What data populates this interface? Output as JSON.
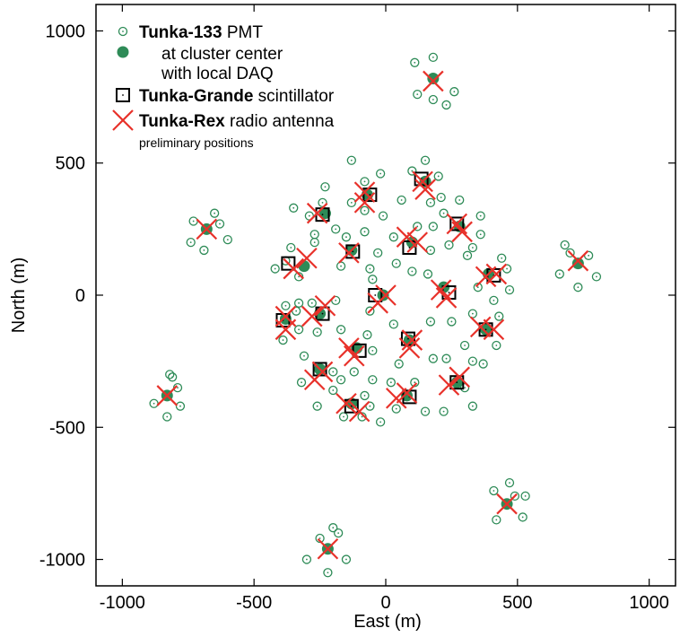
{
  "chart_data": {
    "type": "scatter",
    "xlabel": "East (m)",
    "ylabel": "North (m)",
    "xlim": [
      -1100,
      1100
    ],
    "ylim": [
      -1100,
      1100
    ],
    "xticks": [
      -1000,
      -500,
      0,
      500,
      1000
    ],
    "yticks": [
      -1000,
      -500,
      0,
      500,
      1000
    ],
    "xtick_labels": [
      "-1000",
      "-500",
      "0",
      "500",
      "1000"
    ],
    "ytick_labels": [
      "-1000",
      "-500",
      "0",
      "500",
      "1000"
    ],
    "grid": false,
    "legend": {
      "position": "top-left",
      "entries": [
        {
          "bold": "Tunka-133",
          "rest": " PMT",
          "marker": "pmt"
        },
        {
          "line1": "at cluster center",
          "line2": "with local DAQ",
          "marker": "center"
        },
        {
          "bold": "Tunka-Grande",
          "rest": " scintillator",
          "marker": "scint"
        },
        {
          "bold": "Tunka-Rex",
          "rest": " radio antenna",
          "marker": "antenna"
        }
      ],
      "note": "preliminary positions"
    },
    "colors": {
      "pmt": "#2e8b57",
      "antenna": "#e8312a",
      "scint": "#000000"
    },
    "series": [
      {
        "name": "cluster center",
        "points": [
          [
            -230,
            310
          ],
          [
            -310,
            110
          ],
          [
            -380,
            -90
          ],
          [
            -250,
            -70
          ],
          [
            -130,
            170
          ],
          [
            -70,
            380
          ],
          [
            -10,
            0
          ],
          [
            -110,
            -200
          ],
          [
            -250,
            -280
          ],
          [
            -130,
            -410
          ],
          [
            80,
            -380
          ],
          [
            90,
            -170
          ],
          [
            270,
            -330
          ],
          [
            380,
            -130
          ],
          [
            390,
            80
          ],
          [
            220,
            30
          ],
          [
            150,
            430
          ],
          [
            280,
            260
          ],
          [
            100,
            200
          ],
          [
            180,
            820
          ],
          [
            -680,
            250
          ],
          [
            730,
            120
          ],
          [
            -830,
            -380
          ],
          [
            -220,
            -960
          ],
          [
            460,
            -790
          ]
        ]
      },
      {
        "name": "outer PMT",
        "points": [
          [
            -240,
            350
          ],
          [
            -290,
            300
          ],
          [
            -190,
            250
          ],
          [
            -230,
            410
          ],
          [
            -270,
            200
          ],
          [
            -360,
            180
          ],
          [
            -380,
            130
          ],
          [
            -330,
            70
          ],
          [
            -330,
            -30
          ],
          [
            -380,
            -40
          ],
          [
            -390,
            -170
          ],
          [
            -330,
            -130
          ],
          [
            -280,
            -30
          ],
          [
            -190,
            -20
          ],
          [
            -260,
            -140
          ],
          [
            -150,
            220
          ],
          [
            -80,
            240
          ],
          [
            -170,
            110
          ],
          [
            -60,
            100
          ],
          [
            -10,
            300
          ],
          [
            -80,
            320
          ],
          [
            -80,
            430
          ],
          [
            -20,
            460
          ],
          [
            -130,
            350
          ],
          [
            40,
            120
          ],
          [
            -30,
            160
          ],
          [
            -50,
            60
          ],
          [
            -60,
            -60
          ],
          [
            -70,
            -150
          ],
          [
            -170,
            -130
          ],
          [
            -120,
            -290
          ],
          [
            -50,
            -210
          ],
          [
            -170,
            -320
          ],
          [
            -200,
            -360
          ],
          [
            -160,
            -460
          ],
          [
            -90,
            -460
          ],
          [
            -60,
            -420
          ],
          [
            -50,
            -320
          ],
          [
            50,
            -260
          ],
          [
            20,
            -330
          ],
          [
            150,
            -440
          ],
          [
            40,
            -430
          ],
          [
            180,
            -240
          ],
          [
            230,
            -240
          ],
          [
            300,
            -350
          ],
          [
            330,
            -420
          ],
          [
            220,
            -440
          ],
          [
            330,
            -250
          ],
          [
            420,
            -190
          ],
          [
            430,
            -80
          ],
          [
            330,
            -70
          ],
          [
            300,
            -190
          ],
          [
            170,
            -100
          ],
          [
            250,
            -100
          ],
          [
            30,
            -110
          ],
          [
            460,
            100
          ],
          [
            470,
            20
          ],
          [
            350,
            30
          ],
          [
            310,
            150
          ],
          [
            170,
            170
          ],
          [
            160,
            80
          ],
          [
            100,
            90
          ],
          [
            120,
            260
          ],
          [
            180,
            260
          ],
          [
            220,
            310
          ],
          [
            240,
            190
          ],
          [
            330,
            180
          ],
          [
            360,
            300
          ],
          [
            280,
            360
          ],
          [
            170,
            350
          ],
          [
            100,
            470
          ],
          [
            200,
            450
          ],
          [
            150,
            510
          ],
          [
            60,
            360
          ],
          [
            30,
            220
          ],
          [
            -350,
            330
          ],
          [
            -270,
            230
          ],
          [
            -420,
            100
          ],
          [
            -340,
            -60
          ],
          [
            -310,
            -230
          ],
          [
            -200,
            -290
          ],
          [
            -320,
            -330
          ],
          [
            -80,
            -380
          ],
          [
            110,
            -330
          ],
          [
            370,
            -260
          ],
          [
            410,
            -20
          ],
          [
            440,
            140
          ],
          [
            360,
            230
          ],
          [
            210,
            370
          ],
          [
            -130,
            510
          ],
          [
            -20,
            -480
          ],
          [
            -260,
            -420
          ],
          [
            180,
            740
          ],
          [
            230,
            720
          ],
          [
            260,
            770
          ],
          [
            120,
            760
          ],
          [
            110,
            880
          ],
          [
            180,
            900
          ],
          [
            -630,
            270
          ],
          [
            -650,
            310
          ],
          [
            -730,
            280
          ],
          [
            -740,
            200
          ],
          [
            -690,
            170
          ],
          [
            -600,
            210
          ],
          [
            700,
            160
          ],
          [
            680,
            190
          ],
          [
            660,
            80
          ],
          [
            770,
            150
          ],
          [
            800,
            70
          ],
          [
            730,
            30
          ],
          [
            -790,
            -350
          ],
          [
            -810,
            -310
          ],
          [
            -880,
            -410
          ],
          [
            -830,
            -460
          ],
          [
            -780,
            -420
          ],
          [
            -820,
            -300
          ],
          [
            -180,
            -900
          ],
          [
            -250,
            -920
          ],
          [
            -300,
            -1000
          ],
          [
            -220,
            -1050
          ],
          [
            -150,
            -1000
          ],
          [
            -200,
            -880
          ],
          [
            490,
            -760
          ],
          [
            520,
            -840
          ],
          [
            420,
            -850
          ],
          [
            410,
            -740
          ],
          [
            470,
            -710
          ],
          [
            530,
            -760
          ]
        ]
      },
      {
        "name": "Tunka-Grande scintillator",
        "points": [
          [
            -240,
            305
          ],
          [
            -370,
            120
          ],
          [
            -390,
            -95
          ],
          [
            -240,
            -70
          ],
          [
            -125,
            165
          ],
          [
            -60,
            380
          ],
          [
            -40,
            0
          ],
          [
            -100,
            -210
          ],
          [
            -250,
            -280
          ],
          [
            -130,
            -420
          ],
          [
            90,
            -385
          ],
          [
            85,
            -165
          ],
          [
            270,
            -330
          ],
          [
            380,
            -130
          ],
          [
            410,
            75
          ],
          [
            240,
            10
          ],
          [
            135,
            440
          ],
          [
            270,
            270
          ],
          [
            90,
            180
          ]
        ]
      },
      {
        "name": "Tunka-Rex radio antenna",
        "points": [
          [
            -260,
            310
          ],
          [
            -300,
            140
          ],
          [
            -350,
            100
          ],
          [
            -380,
            -80
          ],
          [
            -380,
            -130
          ],
          [
            -280,
            -80
          ],
          [
            -230,
            -40
          ],
          [
            -140,
            160
          ],
          [
            -80,
            390
          ],
          [
            -80,
            350
          ],
          [
            0,
            0
          ],
          [
            -30,
            -30
          ],
          [
            -140,
            -200
          ],
          [
            -120,
            -230
          ],
          [
            -240,
            -290
          ],
          [
            -270,
            -320
          ],
          [
            -150,
            -410
          ],
          [
            -100,
            -440
          ],
          [
            80,
            -370
          ],
          [
            40,
            -390
          ],
          [
            100,
            -170
          ],
          [
            90,
            -200
          ],
          [
            240,
            -340
          ],
          [
            280,
            -310
          ],
          [
            360,
            -120
          ],
          [
            410,
            -130
          ],
          [
            380,
            70
          ],
          [
            420,
            80
          ],
          [
            210,
            20
          ],
          [
            230,
            -10
          ],
          [
            140,
            430
          ],
          [
            150,
            400
          ],
          [
            270,
            270
          ],
          [
            290,
            240
          ],
          [
            80,
            220
          ],
          [
            120,
            200
          ],
          [
            180,
            810
          ],
          [
            -680,
            250
          ],
          [
            730,
            130
          ],
          [
            -830,
            -380
          ],
          [
            -220,
            -960
          ],
          [
            460,
            -790
          ]
        ]
      }
    ]
  }
}
